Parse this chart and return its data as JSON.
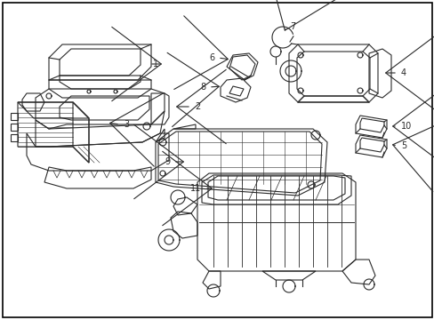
{
  "background_color": "#ffffff",
  "line_color": "#2a2a2a",
  "border_color": "#000000",
  "fig_width": 4.89,
  "fig_height": 3.6,
  "dpi": 100
}
